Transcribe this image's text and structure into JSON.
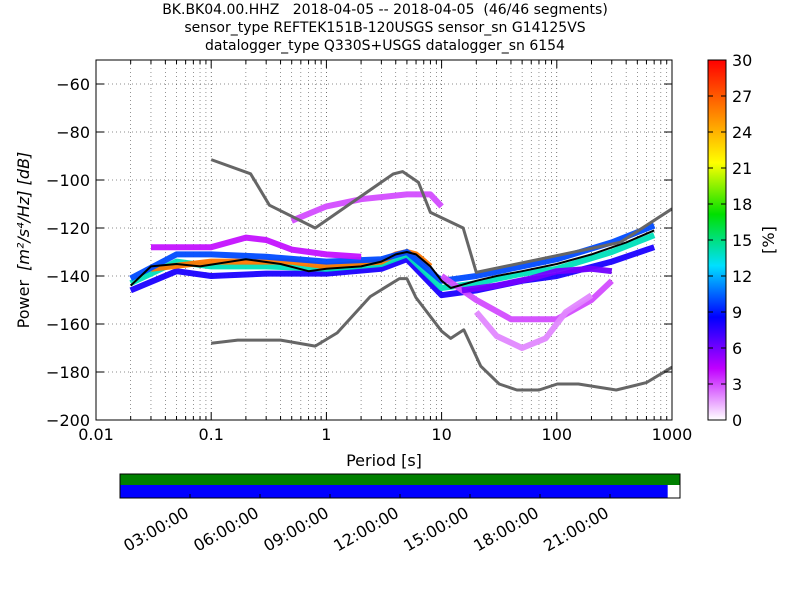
{
  "title_lines": [
    "BK.BK04.00.HHZ   2018-04-05 -- 2018-04-05  (46/46 segments)",
    "sensor_type REFTEK151B-120USGS sensor_sn G14125VS",
    "datalogger_type Q330S+USGS datalogger_sn 6154"
  ],
  "chart_data": {
    "type": "heatmap",
    "title": "BK.BK04.00.HHZ   2018-04-05 -- 2018-04-05  (46/46 segments)",
    "xlabel": "Period [s]",
    "ylabel_prefix": "Power",
    "ylabel_units": "[m²/s⁴/Hz] [dB]",
    "xscale": "log",
    "xlim": [
      0.01,
      1000
    ],
    "ylim": [
      -200,
      -50
    ],
    "x_ticks": [
      0.01,
      0.1,
      1,
      10,
      100,
      1000
    ],
    "x_tick_labels": [
      "0.01",
      "0.1",
      "1",
      "10",
      "100",
      "1000"
    ],
    "y_ticks": [
      -200,
      -180,
      -160,
      -140,
      -120,
      -100,
      -80,
      -60
    ],
    "y_tick_labels": [
      "−200",
      "−180",
      "−160",
      "−140",
      "−120",
      "−100",
      "−80",
      "−60"
    ],
    "grid": true,
    "colorbar": {
      "label": "[%]",
      "range": [
        0,
        30
      ],
      "ticks": [
        0,
        3,
        6,
        9,
        12,
        15,
        18,
        21,
        24,
        27,
        30
      ],
      "colormap": [
        "#ffffff",
        "#c000ff",
        "#0000ff",
        "#00e0ff",
        "#00e000",
        "#ffff00",
        "#ff8000",
        "#ff0000"
      ]
    },
    "nhnm": {
      "name": "NHNM",
      "color": "#666666",
      "points": [
        [
          0.1,
          -91.5
        ],
        [
          0.22,
          -97.4
        ],
        [
          0.32,
          -110.5
        ],
        [
          0.8,
          -120
        ],
        [
          3.8,
          -97.5
        ],
        [
          4.6,
          -96.5
        ],
        [
          6.3,
          -101
        ],
        [
          8,
          -113.5
        ],
        [
          15.4,
          -120
        ],
        [
          20,
          -138.5
        ],
        [
          354.8,
          -126
        ],
        [
          1000,
          -112
        ]
      ]
    },
    "nlnm": {
      "name": "NLNM",
      "color": "#666666",
      "points": [
        [
          0.1,
          -168
        ],
        [
          0.17,
          -166.7
        ],
        [
          0.4,
          -166.7
        ],
        [
          0.8,
          -169.2
        ],
        [
          1.24,
          -163.7
        ],
        [
          2.4,
          -148.6
        ],
        [
          4.3,
          -141.1
        ],
        [
          5,
          -141.1
        ],
        [
          6,
          -149
        ],
        [
          10,
          -163
        ],
        [
          12,
          -166
        ],
        [
          15.6,
          -162.4
        ],
        [
          21.9,
          -177.6
        ],
        [
          31.6,
          -185
        ],
        [
          45,
          -187.5
        ],
        [
          70,
          -187.5
        ],
        [
          101,
          -185
        ],
        [
          154,
          -185
        ],
        [
          328,
          -187.5
        ],
        [
          600,
          -184.4
        ],
        [
          1000,
          -178
        ]
      ]
    },
    "mode_curve": {
      "name": "mode",
      "color": "#000000",
      "points": [
        [
          0.02,
          -144
        ],
        [
          0.03,
          -136
        ],
        [
          0.05,
          -135
        ],
        [
          0.08,
          -136
        ],
        [
          0.2,
          -133
        ],
        [
          0.4,
          -135
        ],
        [
          0.7,
          -138
        ],
        [
          1,
          -137
        ],
        [
          2,
          -136
        ],
        [
          3,
          -134
        ],
        [
          4,
          -131
        ],
        [
          5,
          -130
        ],
        [
          6,
          -131
        ],
        [
          8,
          -136
        ],
        [
          10,
          -142
        ],
        [
          12,
          -145
        ],
        [
          20,
          -142
        ],
        [
          30,
          -140
        ],
        [
          50,
          -138
        ],
        [
          100,
          -135
        ],
        [
          200,
          -131
        ],
        [
          400,
          -126
        ],
        [
          700,
          -121
        ]
      ]
    },
    "psd_bands": [
      {
        "pct": 8,
        "points": [
          [
            0.02,
            -146
          ],
          [
            0.05,
            -138
          ],
          [
            0.1,
            -140
          ],
          [
            0.3,
            -139
          ],
          [
            1,
            -139
          ],
          [
            3,
            -137
          ],
          [
            5,
            -133
          ],
          [
            10,
            -148
          ],
          [
            20,
            -146
          ],
          [
            50,
            -142
          ],
          [
            100,
            -140
          ],
          [
            300,
            -134
          ],
          [
            700,
            -128
          ]
        ]
      },
      {
        "pct": 14,
        "points": [
          [
            0.02,
            -143
          ],
          [
            0.05,
            -134
          ],
          [
            0.1,
            -136
          ],
          [
            0.3,
            -136
          ],
          [
            1,
            -137
          ],
          [
            3,
            -135
          ],
          [
            5,
            -131
          ],
          [
            10,
            -145
          ],
          [
            20,
            -143
          ],
          [
            50,
            -139
          ],
          [
            100,
            -137
          ],
          [
            300,
            -130
          ],
          [
            700,
            -123
          ]
        ]
      },
      {
        "pct": 26,
        "points": [
          [
            0.03,
            -137
          ],
          [
            0.1,
            -134
          ],
          [
            0.5,
            -134
          ],
          [
            1,
            -136
          ],
          [
            3,
            -134
          ],
          [
            4,
            -131
          ],
          [
            5,
            -130
          ],
          [
            6,
            -131
          ],
          [
            8,
            -136
          ]
        ]
      },
      {
        "pct": 10,
        "points": [
          [
            0.02,
            -141
          ],
          [
            0.05,
            -131
          ],
          [
            0.1,
            -131
          ],
          [
            0.3,
            -132
          ],
          [
            1,
            -134
          ],
          [
            3,
            -133
          ],
          [
            5,
            -130
          ],
          [
            10,
            -142
          ],
          [
            20,
            -140
          ],
          [
            50,
            -136
          ],
          [
            100,
            -133
          ],
          [
            300,
            -126
          ],
          [
            700,
            -119
          ]
        ]
      },
      {
        "pct": 4,
        "points": [
          [
            0.03,
            -128
          ],
          [
            0.1,
            -128
          ],
          [
            0.2,
            -124
          ],
          [
            0.3,
            -125
          ],
          [
            0.5,
            -129
          ],
          [
            1,
            -131
          ],
          [
            2,
            -132
          ]
        ]
      },
      {
        "pct": 3,
        "points": [
          [
            0.5,
            -117
          ],
          [
            1,
            -111
          ],
          [
            2,
            -108
          ],
          [
            5,
            -106
          ],
          [
            8,
            -106
          ],
          [
            10,
            -111
          ]
        ]
      },
      {
        "pct": 3,
        "points": [
          [
            10,
            -140
          ],
          [
            20,
            -150
          ],
          [
            40,
            -158
          ],
          [
            100,
            -158
          ],
          [
            200,
            -150
          ],
          [
            300,
            -142
          ]
        ]
      },
      {
        "pct": 2,
        "points": [
          [
            20,
            -155
          ],
          [
            30,
            -165
          ],
          [
            50,
            -170
          ],
          [
            80,
            -166
          ],
          [
            120,
            -155
          ],
          [
            200,
            -148
          ]
        ]
      },
      {
        "pct": 6,
        "points": [
          [
            15,
            -146
          ],
          [
            30,
            -144
          ],
          [
            60,
            -141
          ],
          [
            100,
            -138
          ],
          [
            200,
            -137
          ],
          [
            300,
            -138
          ]
        ]
      }
    ]
  },
  "timeline": {
    "tick_labels": [
      "03:00:00",
      "06:00:00",
      "09:00:00",
      "12:00:00",
      "15:00:00",
      "18:00:00",
      "21:00:00"
    ],
    "tick_hours": [
      3,
      6,
      9,
      12,
      15,
      18,
      21
    ],
    "span_hours": 24,
    "coverage_fraction": 0.978,
    "green_color": "#008000",
    "blue_color": "#0000ff"
  }
}
